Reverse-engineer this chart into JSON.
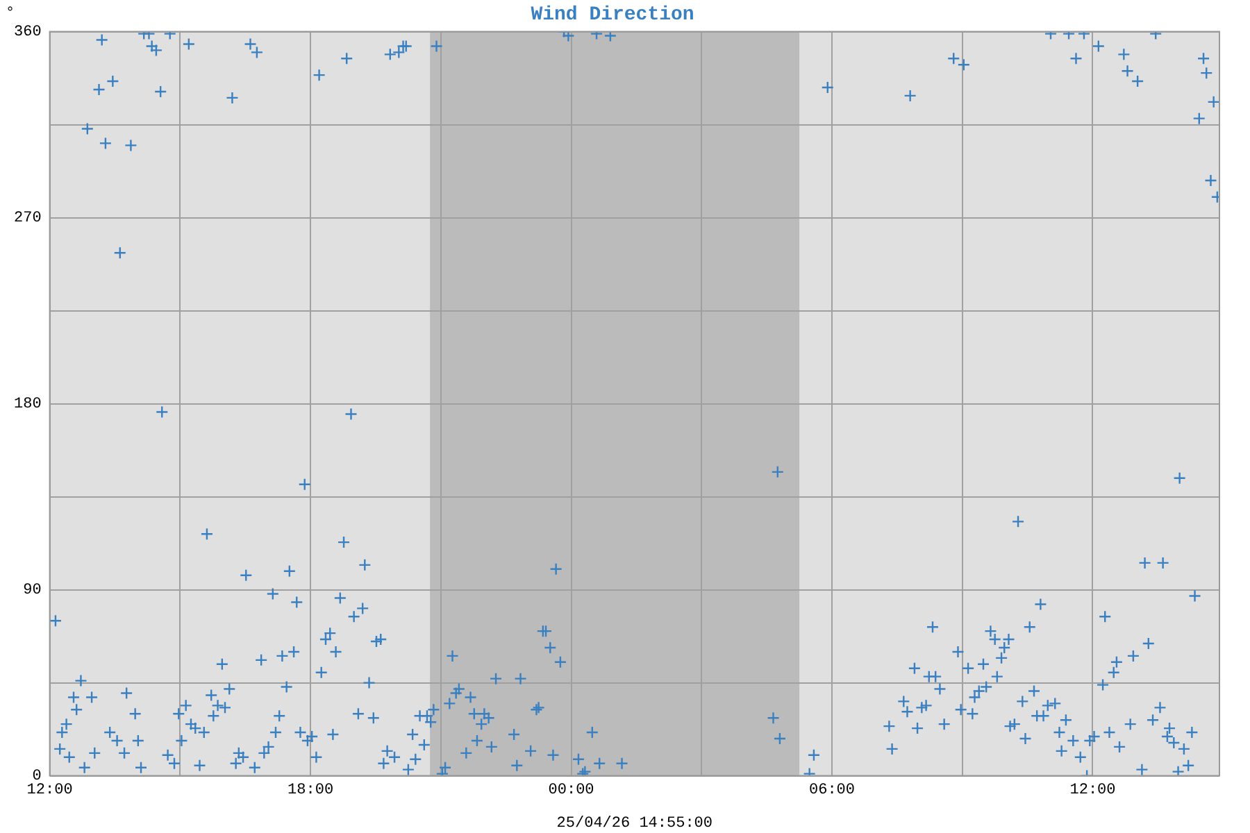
{
  "chart_data": {
    "type": "scatter",
    "title": "Wind Direction",
    "ylabel": "°",
    "annotations": [
      "25/04/26 14:55:00"
    ],
    "xlim": [
      "--04-24T12:00",
      "--04-25T14:55"
    ],
    "xticks": [
      {
        "value": "--04-24T12:00",
        "label": "12:00"
      },
      {
        "value": "--04-24T15:00",
        "label": null
      },
      {
        "value": "--04-24T18:00",
        "label": "18:00"
      },
      {
        "value": "--04-24T21:00",
        "label": null
      },
      {
        "value": "--04-25T00:00",
        "label": "00:00"
      },
      {
        "value": "--04-25T03:00",
        "label": null
      },
      {
        "value": "--04-25T06:00",
        "label": "06:00"
      },
      {
        "value": "--04-25T09:00",
        "label": null
      },
      {
        "value": "--04-25T12:00",
        "label": "12:00"
      }
    ],
    "ylim": [
      0,
      360
    ],
    "yticks": [
      0,
      {
        "value": 45,
        "label": null
      },
      90,
      {
        "value": 135,
        "label": null
      },
      180,
      {
        "value": 225,
        "label": null
      },
      270,
      {
        "value": 315,
        "label": null
      },
      360
    ],
    "grid": true,
    "marker": "cross",
    "bands": [
      {
        "axis": "x",
        "from": "--04-24T20:45",
        "to": "--04-25T05:15",
        "color": "#bbbbbb"
      }
    ],
    "series": [
      {
        "color": "#3a7fc0",
        "x": [
          "--04-24T12:08",
          "--04-24T12:43",
          "--04-24T12:33",
          "--04-24T12:58",
          "--04-24T13:46",
          "--04-24T12:37",
          "--04-24T13:58",
          "--04-24T12:23",
          "--04-24T12:17",
          "--04-24T13:23",
          "--04-24T13:33",
          "--04-24T14:02",
          "--04-24T12:14",
          "--04-24T13:43",
          "--04-24T12:27",
          "--04-24T13:02",
          "--04-24T12:48",
          "--04-24T14:06",
          "--04-24T14:43",
          "--04-24T14:52",
          "--04-24T14:58",
          "--04-24T15:08",
          "--04-24T15:02",
          "--04-24T15:27",
          "--04-24T15:37",
          "--04-24T16:31",
          "--04-24T17:31",
          "--04-24T17:08",
          "--04-24T17:41",
          "--04-24T15:58",
          "--04-24T16:52",
          "--04-24T17:21",
          "--04-24T17:37",
          "--04-24T15:43",
          "--04-24T16:08",
          "--04-24T15:52",
          "--04-24T16:02",
          "--04-24T15:46",
          "--04-24T17:27",
          "--04-24T17:17",
          "--04-24T15:15",
          "--04-24T15:21",
          "--04-24T15:33",
          "--04-24T17:12",
          "--04-24T17:02",
          "--04-24T16:56",
          "--04-24T16:21",
          "--04-24T16:27",
          "--04-24T16:17",
          "--04-24T16:43",
          "--04-24T17:46",
          "--04-24T17:56",
          "--04-24T18:02",
          "--04-24T18:08",
          "--04-24T18:46",
          "--04-24T19:15",
          "--04-24T18:41",
          "--04-24T19:00",
          "--04-24T19:12",
          "--04-24T18:21",
          "--04-24T18:27",
          "--04-24T18:35",
          "--04-24T19:31",
          "--04-24T19:37",
          "--04-24T18:15",
          "--04-24T19:21",
          "--04-24T19:06",
          "--04-24T19:27",
          "--04-24T18:31",
          "--04-24T20:21",
          "--04-24T20:31",
          "--04-24T20:41",
          "--04-24T20:50",
          "--04-24T20:46",
          "--04-24T20:37",
          "--04-24T19:46",
          "--04-24T19:56",
          "--04-24T20:25",
          "--04-24T19:41",
          "--04-24T20:15",
          "--04-24T21:02",
          "--04-24T23:39",
          "--04-24T23:21",
          "--04-24T23:25",
          "--04-24T23:31",
          "--04-24T23:45",
          "--04-24T21:16",
          "--04-24T22:16",
          "--04-24T22:50",
          "--04-24T21:25",
          "--04-24T21:21",
          "--04-24T21:41",
          "--04-24T21:12",
          "--04-24T21:46",
          "--04-24T22:00",
          "--04-24T22:06",
          "--04-24T21:56",
          "--04-24T23:12",
          "--04-24T23:15",
          "--04-24T22:41",
          "--04-24T21:50",
          "--04-24T22:10",
          "--04-24T21:35",
          "--04-24T23:04",
          "--04-24T23:35",
          "--04-24T22:45",
          "--04-25T00:10",
          "--04-25T00:29",
          "--04-25T00:39",
          "--04-25T01:10",
          "--04-24T21:06",
          "--04-25T00:16",
          "--04-25T00:19",
          "--04-25T04:39",
          "--04-25T04:48",
          "--04-25T05:35",
          "--04-25T05:29",
          "--04-25T10:17",
          "--04-25T13:12",
          "--04-25T13:37",
          "--04-25T14:21",
          "--04-25T10:48",
          "--04-25T10:33",
          "--04-25T12:17",
          "--04-25T08:19",
          "--04-25T09:39",
          "--04-25T09:45",
          "--04-25T10:04",
          "--04-25T09:58",
          "--04-25T09:54",
          "--04-25T09:29",
          "--04-25T08:54",
          "--04-25T09:08",
          "--04-25T09:48",
          "--04-25T13:17",
          "--04-25T12:56",
          "--04-25T12:33",
          "--04-25T12:29",
          "--04-25T12:14",
          "--04-25T07:54",
          "--04-25T08:14",
          "--04-25T08:23",
          "--04-25T08:29",
          "--04-25T09:33",
          "--04-25T09:23",
          "--04-25T09:17",
          "--04-25T10:39",
          "--04-25T07:39",
          "--04-25T07:44",
          "--04-25T08:04",
          "--04-25T08:10",
          "--04-25T08:58",
          "--04-25T09:14",
          "--04-25T10:23",
          "--04-25T10:58",
          "--04-25T11:08",
          "--04-25T10:43",
          "--04-25T10:52",
          "--04-25T11:23",
          "--04-25T13:33",
          "--04-25T13:23",
          "--04-25T12:52",
          "--04-25T13:46",
          "--04-25T14:17",
          "--04-25T13:43",
          "--04-25T13:52",
          "--04-25T14:06",
          "--04-25T12:23",
          "--04-25T12:37",
          "--04-25T12:02",
          "--04-25T11:56",
          "--04-25T11:33",
          "--04-25T11:14",
          "--04-25T11:17",
          "--04-25T11:43",
          "--04-25T11:52",
          "--04-25T13:08",
          "--04-25T13:58",
          "--04-25T14:12",
          "--04-25T07:19",
          "--04-25T07:23",
          "--04-25T07:58",
          "--04-25T08:35",
          "--04-25T10:06",
          "--04-25T10:12",
          "--04-25T10:27",
          "--04-24T13:12",
          "--04-24T14:10",
          "--04-24T14:17",
          "--04-24T14:46",
          "--04-24T14:21",
          "--04-24T14:27",
          "--04-24T13:27",
          "--04-24T13:08",
          "--04-24T14:33",
          "--04-24T12:52",
          "--04-24T13:17",
          "--04-24T13:52",
          "--04-24T13:37",
          "--04-24T15:12",
          "--04-24T16:37",
          "--04-24T16:46",
          "--04-24T16:12",
          "--04-24T18:12",
          "--04-24T18:50",
          "--04-24T19:50",
          "--04-24T20:02",
          "--04-24T20:08",
          "--04-24T20:12",
          "--04-24T20:54",
          "--04-24T23:50",
          "--04-24T23:56",
          "--04-25T00:35",
          "--04-25T00:54",
          "--04-25T05:54",
          "--04-25T07:48",
          "--04-25T08:48",
          "--04-25T09:02",
          "--04-25T11:02",
          "--04-25T11:27",
          "--04-25T11:48",
          "--04-25T11:37",
          "--04-25T12:08",
          "--04-25T12:43",
          "--04-25T12:48",
          "--04-25T13:02",
          "--04-25T13:27",
          "--04-25T14:33",
          "--04-25T14:37",
          "--04-25T14:47",
          "--04-25T14:27",
          "--04-25T14:43",
          "--04-25T14:52",
          "--04-24T14:35",
          "--04-24T18:56",
          "--04-24T17:52",
          "--04-25T04:45",
          "--04-25T14:00"
        ],
        "values": [
          75,
          46,
          38,
          38,
          40,
          32,
          30,
          25,
          21,
          21,
          17,
          17,
          13,
          11,
          9,
          11,
          4,
          4,
          10,
          6,
          30,
          34,
          17,
          5,
          117,
          97,
          99,
          88,
          84,
          54,
          56,
          58,
          60,
          39,
          42,
          34,
          33,
          29,
          43,
          29,
          25,
          23,
          21,
          21,
          14,
          11,
          11,
          9,
          6,
          4,
          21,
          17,
          19,
          9,
          113,
          102,
          86,
          77,
          81,
          66,
          69,
          60,
          65,
          66,
          50,
          45,
          30,
          28,
          20,
          20,
          29,
          29,
          32,
          26,
          15,
          12,
          9,
          8,
          6,
          3,
          1,
          100,
          70,
          70,
          62,
          55,
          58,
          47,
          47,
          42,
          40,
          38,
          35,
          30,
          30,
          28,
          25,
          32,
          33,
          20,
          17,
          14,
          11,
          12,
          10,
          5,
          8,
          21,
          6,
          6,
          4,
          1,
          2,
          28,
          18,
          10,
          1,
          123,
          103,
          103,
          87,
          83,
          72,
          77,
          72,
          70,
          66,
          66,
          62,
          57,
          54,
          60,
          52,
          48,
          64,
          58,
          55,
          50,
          44,
          52,
          48,
          48,
          42,
          43,
          41,
          38,
          41,
          36,
          31,
          33,
          34,
          32,
          30,
          36,
          34,
          35,
          29,
          29,
          27,
          33,
          27,
          25,
          23,
          21,
          19,
          16,
          13,
          21,
          14,
          19,
          17,
          17,
          21,
          12,
          9,
          0,
          3,
          2,
          5,
          24,
          13,
          23,
          25,
          24,
          25,
          18,
          356,
          359,
          359,
          359,
          353,
          351,
          336,
          332,
          331,
          313,
          306,
          305,
          253,
          354,
          354,
          350,
          328,
          339,
          347,
          349,
          350,
          353,
          353,
          353,
          360,
          358,
          359,
          358,
          333,
          329,
          347,
          344,
          359,
          359,
          359,
          347,
          353,
          349,
          341,
          336,
          359,
          347,
          340,
          326,
          318,
          288,
          280,
          176,
          175,
          141,
          147,
          144
        ]
      }
    ]
  }
}
